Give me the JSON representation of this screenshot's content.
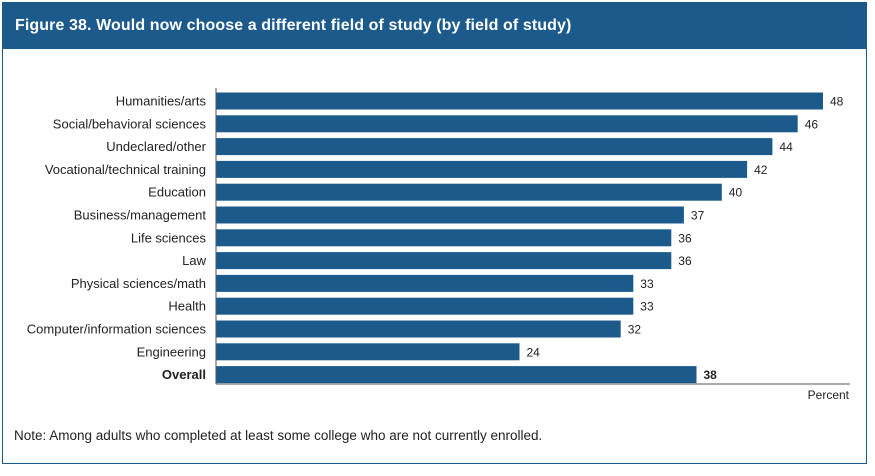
{
  "figure": {
    "title": "Figure 38. Would now choose a different field of study (by field of study)",
    "note": "Note: Among adults who completed at least some college who are not currently enrolled."
  },
  "colors": {
    "bar": "#1d5a8c",
    "title_bar": "#1d5a8c",
    "axis": "#555555",
    "text": "#222222"
  },
  "chart_data": {
    "type": "bar",
    "orientation": "horizontal",
    "title": "Figure 38. Would now choose a different field of study (by field of study)",
    "xlabel": "Percent",
    "ylabel": "",
    "xlim": [
      0,
      50
    ],
    "grid": false,
    "categories": [
      "Humanities/arts",
      "Social/behavioral sciences",
      "Undeclared/other",
      "Vocational/technical training",
      "Education",
      "Business/management",
      "Life sciences",
      "Law",
      "Physical sciences/math",
      "Health",
      "Computer/information sciences",
      "Engineering",
      "Overall"
    ],
    "values": [
      48,
      46,
      44,
      42,
      40,
      37,
      36,
      36,
      33,
      33,
      32,
      24,
      38
    ],
    "emphasized_category": "Overall"
  }
}
